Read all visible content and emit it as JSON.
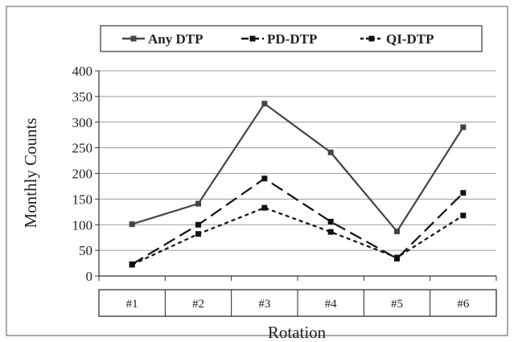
{
  "chart_data": {
    "type": "line",
    "categories": [
      "#1",
      "#2",
      "#3",
      "#4",
      "#5",
      "#6"
    ],
    "series": [
      {
        "name": "Any DTP",
        "values": [
          101,
          141,
          336,
          241,
          87,
          290
        ],
        "color": "#444444",
        "dash": "solid"
      },
      {
        "name": "PD-DTP",
        "values": [
          23,
          100,
          190,
          106,
          34,
          162
        ],
        "color": "#111111",
        "dash": "long-dash"
      },
      {
        "name": "QI-DTP",
        "values": [
          22,
          82,
          133,
          86,
          36,
          118
        ],
        "color": "#111111",
        "dash": "short-dash"
      }
    ],
    "xlabel": "Rotation",
    "ylabel": "Monthly Counts",
    "ylim": [
      0,
      400
    ],
    "yticks": [
      0,
      50,
      100,
      150,
      200,
      250,
      300,
      350,
      400
    ],
    "grid": true,
    "legend": "top"
  }
}
